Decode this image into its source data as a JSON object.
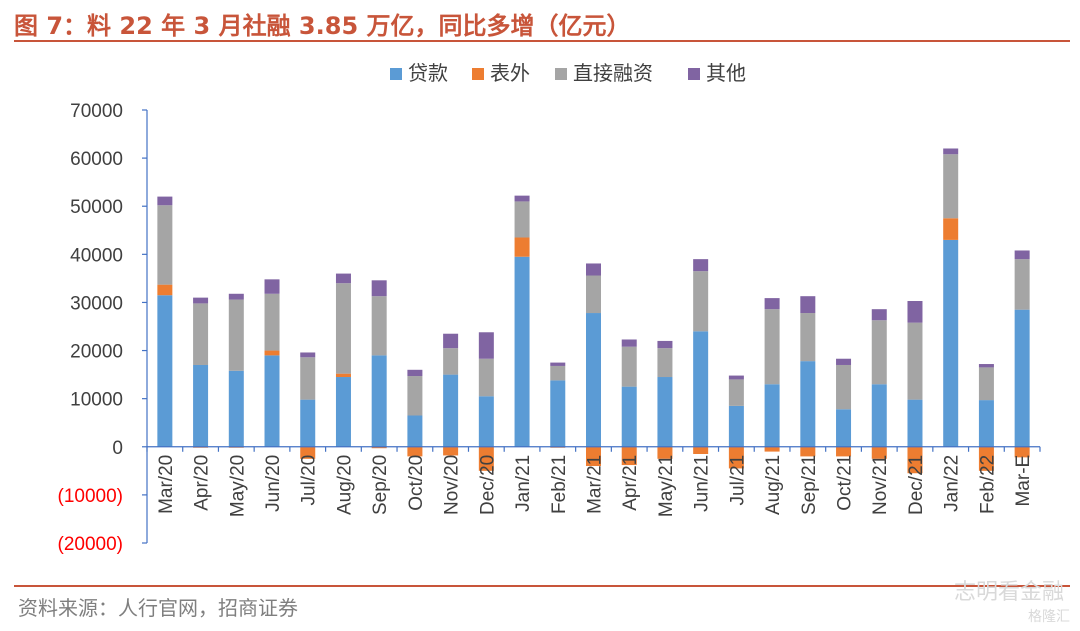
{
  "page": {
    "title": "图 7：料 22 年 3 月社融 3.85 万亿，同比多增（亿元）",
    "source": "资料来源：人行官网，招商证券",
    "watermark": "志明看金融",
    "watermark_corner": "格隆汇"
  },
  "chart_data": {
    "type": "bar",
    "stacked": true,
    "title": "",
    "xlabel": "",
    "ylabel": "",
    "ylim": [
      -20000,
      70000
    ],
    "yticks": [
      -20000,
      -10000,
      0,
      10000,
      20000,
      30000,
      40000,
      50000,
      60000,
      70000
    ],
    "ytick_labels": [
      "(20000)",
      "(10000)",
      "0",
      "10000",
      "20000",
      "30000",
      "40000",
      "50000",
      "60000",
      "70000"
    ],
    "negative_tick_color": "#ff0000",
    "legend_position": "top-center",
    "grid": false,
    "categories": [
      "Mar/20",
      "Apr/20",
      "May/20",
      "Jun/20",
      "Jul/20",
      "Aug/20",
      "Sep/20",
      "Oct/20",
      "Nov/20",
      "Dec/20",
      "Jan/21",
      "Feb/21",
      "Mar/21",
      "Apr/21",
      "May/21",
      "Jun/21",
      "Jul/21",
      "Aug/21",
      "Sep/21",
      "Oct/21",
      "Nov/21",
      "Dec/21",
      "Jan/22",
      "Feb/22",
      "Mar-E"
    ],
    "series": [
      {
        "name": "贷款",
        "color": "#5b9bd5",
        "values": [
          31500,
          17000,
          15800,
          19000,
          9800,
          14500,
          19000,
          6500,
          15000,
          10500,
          39500,
          13800,
          27800,
          12500,
          14500,
          24000,
          8500,
          13000,
          17800,
          7800,
          13000,
          9800,
          43000,
          9700,
          28500
        ]
      },
      {
        "name": "表外",
        "color": "#ed7d31",
        "values": [
          2200,
          -200,
          -200,
          1000,
          -2500,
          700,
          -300,
          -2000,
          -1800,
          -5000,
          4000,
          -200,
          -4000,
          -3800,
          -2500,
          -1500,
          -4500,
          -1000,
          -2000,
          -2000,
          -2500,
          -5500,
          4500,
          -5000,
          -2200
        ]
      },
      {
        "name": "直接融资",
        "color": "#a5a5a5",
        "values": [
          16500,
          12800,
          14800,
          11800,
          8800,
          18800,
          12300,
          8200,
          5500,
          7800,
          7500,
          3000,
          7800,
          8300,
          6000,
          12500,
          5500,
          15600,
          10000,
          9200,
          13300,
          16000,
          13300,
          6800,
          10500
        ]
      },
      {
        "name": "其他",
        "color": "#8064a2",
        "values": [
          1800,
          1200,
          1200,
          3000,
          1000,
          2000,
          3300,
          1300,
          3000,
          5500,
          1200,
          700,
          2500,
          1500,
          1500,
          2500,
          800,
          2300,
          3500,
          1300,
          2300,
          4500,
          1200,
          700,
          1800
        ]
      }
    ]
  }
}
